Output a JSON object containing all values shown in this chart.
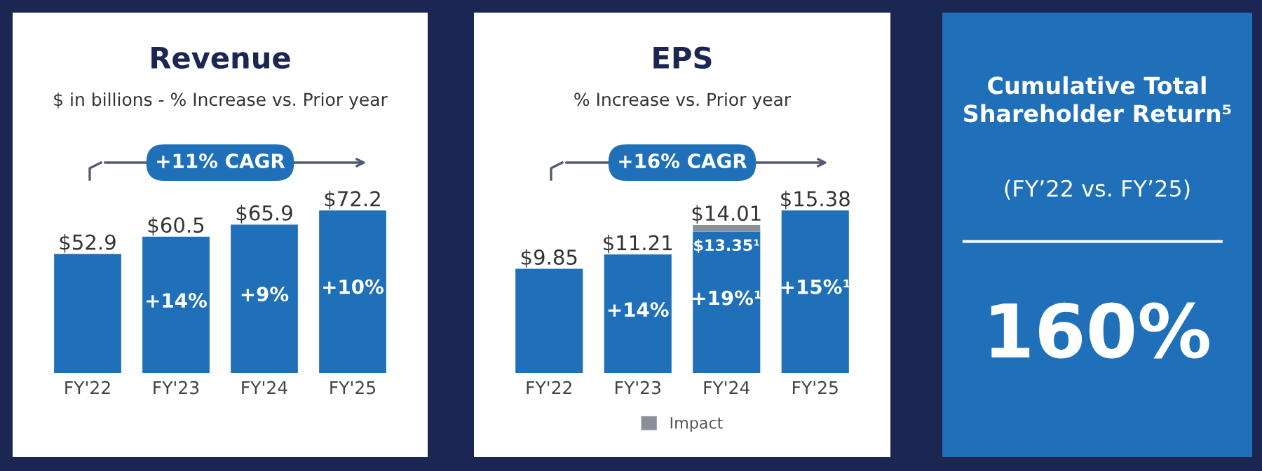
{
  "chart_data": [
    {
      "type": "bar",
      "title": "Revenue",
      "subtitle": "$ in billions - % Increase vs. Prior year",
      "categories": [
        "FY'22",
        "FY'23",
        "FY'24",
        "FY'25"
      ],
      "values": [
        52.9,
        60.5,
        65.9,
        72.2
      ],
      "color": "#1f70b8",
      "value_labels": [
        "$52.9",
        "$60.5",
        "$65.9",
        "$72.2"
      ],
      "annotations": [
        "+11% CAGR",
        "+14%",
        "+9%",
        "+10%"
      ]
    },
    {
      "type": "bar",
      "title": "EPS",
      "subtitle": "% Increase vs. Prior year",
      "stacked": true,
      "categories": [
        "FY'22",
        "FY'23",
        "FY'24",
        "FY'25"
      ],
      "series": [
        {
          "color": "#1f70b8",
          "values": [
            9.85,
            11.21,
            13.35,
            15.38
          ],
          "value_labels": [
            null,
            null,
            "$13.35¹",
            null
          ]
        },
        {
          "name": "Impact",
          "color": "#8a9099",
          "values": [
            null,
            null,
            0.66,
            null
          ]
        }
      ],
      "totals": [
        "$9.85",
        "$11.21",
        "$14.01",
        "$15.38"
      ],
      "legend": "bottom",
      "annotations": [
        "+16% CAGR",
        "+14%",
        "+19%¹",
        "+15%¹"
      ]
    },
    {
      "type": "other",
      "title": "Cumulative Total Shareholder Return⁵",
      "subtitle": "(FY’22 vs. FY’25)",
      "annotations": [
        "160%"
      ]
    }
  ]
}
